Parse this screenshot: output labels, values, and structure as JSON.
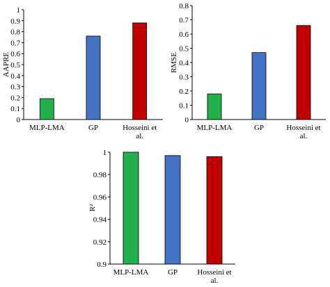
{
  "chart_data": [
    {
      "type": "bar",
      "categories": [
        "MLP-LMA",
        "GP",
        "Hosseini et al."
      ],
      "values": [
        0.19,
        0.76,
        0.88
      ],
      "colors": [
        "#22b14c",
        "#4472c4",
        "#c00000"
      ],
      "xlabel": "",
      "ylabel": "AAPRE",
      "ylim": [
        0,
        1
      ],
      "yticks": [
        0,
        0.1,
        0.2,
        0.3,
        0.4,
        0.5,
        0.6,
        0.7,
        0.8,
        0.9,
        1
      ],
      "ytick_labels": [
        "0",
        "0.1",
        "0.2",
        "0.3",
        "0.4",
        "0.5",
        "0.6",
        "0.7",
        "0.8",
        "0.9",
        "1"
      ],
      "grid": false
    },
    {
      "type": "bar",
      "categories": [
        "MLP-LMA",
        "GP",
        "Hosseini et al."
      ],
      "values": [
        0.18,
        0.47,
        0.66
      ],
      "colors": [
        "#22b14c",
        "#4472c4",
        "#c00000"
      ],
      "xlabel": "",
      "ylabel": "RMSE",
      "ylim": [
        0,
        0.8
      ],
      "yticks": [
        0,
        0.1,
        0.2,
        0.3,
        0.4,
        0.5,
        0.6,
        0.7,
        0.8
      ],
      "ytick_labels": [
        "0",
        "0.1",
        "0.2",
        "0.3",
        "0.4",
        "0.5",
        "0.6",
        "0.7",
        "0.8"
      ],
      "grid": false
    },
    {
      "type": "bar",
      "categories": [
        "MLP-LMA",
        "GP",
        "Hosseini et al."
      ],
      "values": [
        1.0,
        0.997,
        0.996
      ],
      "colors": [
        "#22b14c",
        "#4472c4",
        "#c00000"
      ],
      "xlabel": "",
      "ylabel": "R²",
      "ylim": [
        0.9,
        1
      ],
      "yticks": [
        0.9,
        0.92,
        0.94,
        0.96,
        0.98,
        1
      ],
      "ytick_labels": [
        "0.9",
        "0.92",
        "0.94",
        "0.96",
        "0.98",
        "1"
      ],
      "grid": false
    }
  ]
}
